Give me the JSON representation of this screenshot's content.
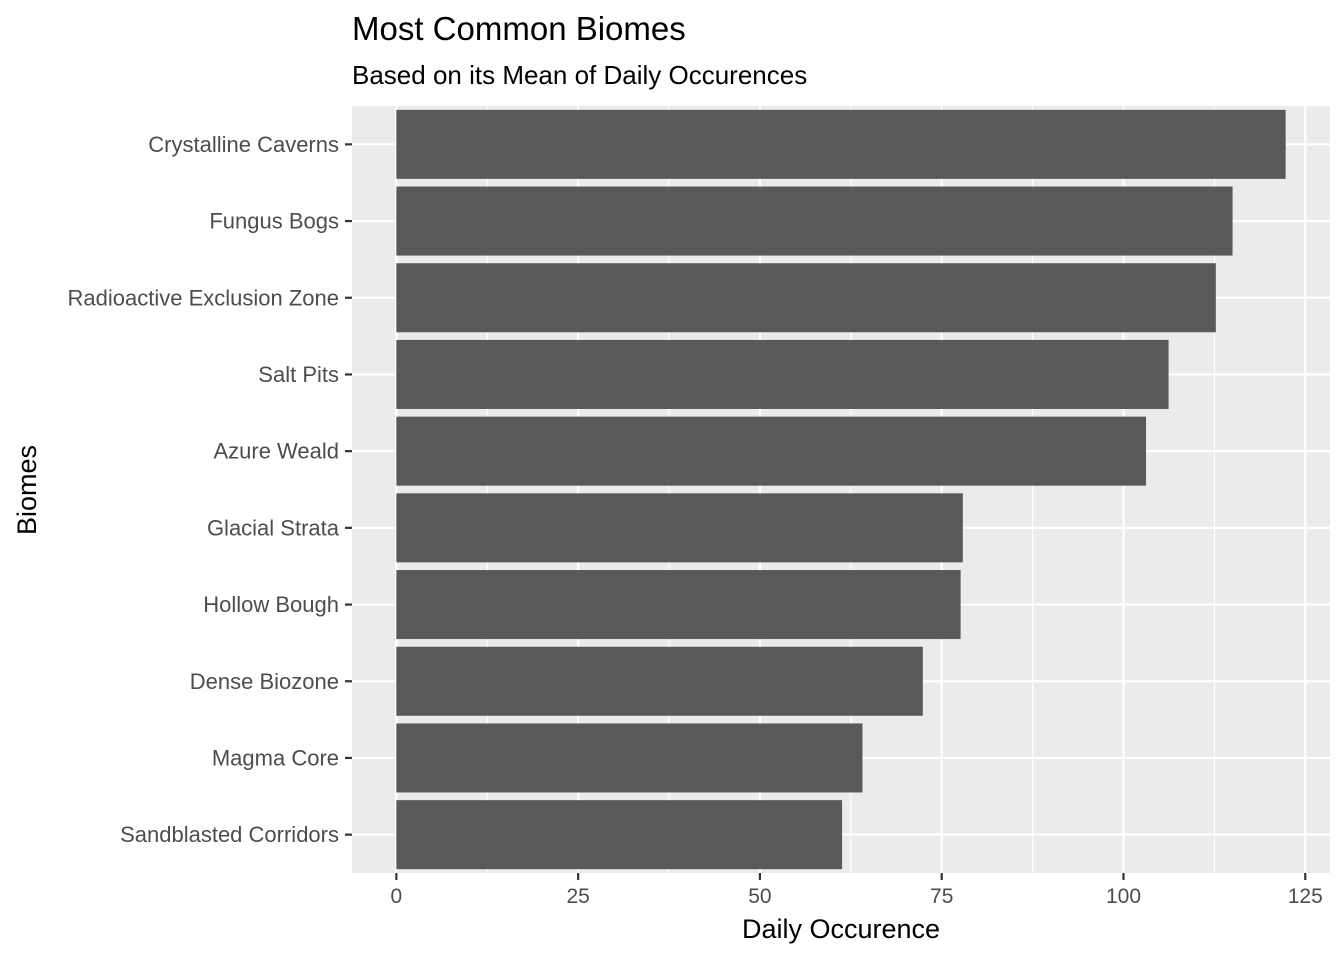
{
  "chart_data": {
    "type": "bar",
    "orientation": "horizontal",
    "title": "Most Common Biomes",
    "subtitle": "Based on its Mean of Daily Occurences",
    "xlabel": "Daily Occurence",
    "ylabel": "Biomes",
    "categories": [
      "Crystalline Caverns",
      "Fungus Bogs",
      "Radioactive Exclusion Zone",
      "Salt Pits",
      "Azure Weald",
      "Glacial Strata",
      "Hollow Bough",
      "Dense Biozone",
      "Magma Core",
      "Sandblasted Corridors"
    ],
    "values": [
      122.3,
      115.0,
      112.7,
      106.2,
      103.1,
      77.9,
      77.6,
      72.4,
      64.1,
      61.3
    ],
    "xlim": [
      -6.1,
      128.4
    ],
    "xticks": [
      0,
      25,
      50,
      75,
      100,
      125
    ],
    "xtick_labels": [
      "0",
      "25",
      "50",
      "75",
      "100",
      "125"
    ],
    "grid": true,
    "bar_color": "#595959",
    "panel_background": "#ebebeb",
    "grid_color": "#ffffff"
  }
}
